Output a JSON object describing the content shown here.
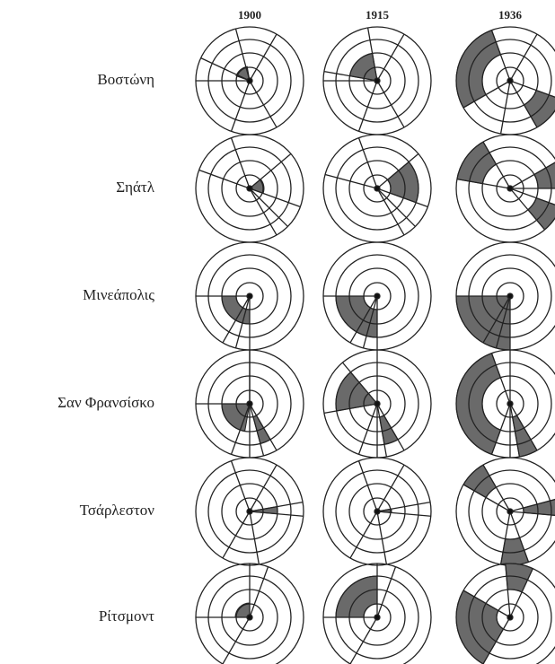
{
  "header": {
    "columns": [
      "1900",
      "1915",
      "1936"
    ]
  },
  "rows": [
    {
      "label": "Βοστώνη"
    },
    {
      "label": "Σηάτλ"
    },
    {
      "label": "Μινεάπολις"
    },
    {
      "label": "Σαν Φρανσίσκο"
    },
    {
      "label": "Τσάρλεστον"
    },
    {
      "label": "Ρίτσμοντ"
    }
  ]
}
